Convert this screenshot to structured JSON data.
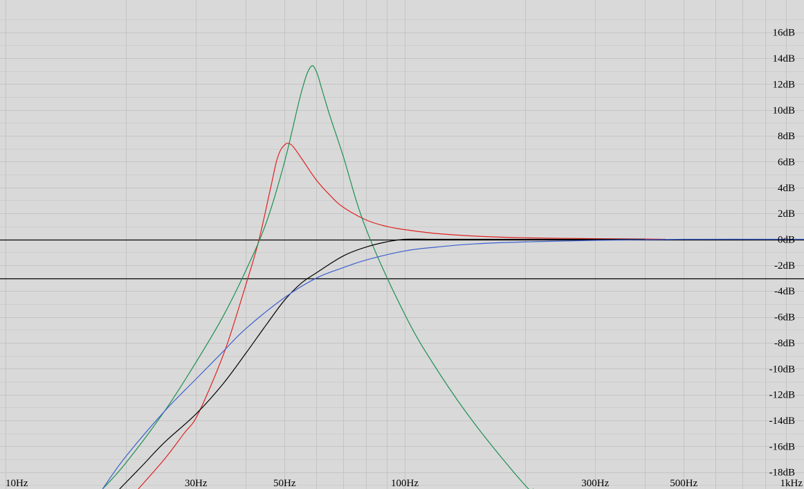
{
  "chart_data": {
    "type": "line",
    "title": "",
    "xlabel": "",
    "ylabel": "",
    "x_scale": "log",
    "xlim": [
      10,
      1000
    ],
    "ylim": [
      -19.3,
      18.5
    ],
    "grid": true,
    "background": "#d9d9d9",
    "x_ticks": [
      {
        "value": 10,
        "label": "10Hz"
      },
      {
        "value": 30,
        "label": "30Hz"
      },
      {
        "value": 50,
        "label": "50Hz"
      },
      {
        "value": 100,
        "label": "100Hz"
      },
      {
        "value": 300,
        "label": "300Hz"
      },
      {
        "value": 500,
        "label": "500Hz"
      },
      {
        "value": 1000,
        "label": "1kHz"
      }
    ],
    "y_ticks": [
      {
        "value": 16,
        "label": "16dB"
      },
      {
        "value": 14,
        "label": "14dB"
      },
      {
        "value": 12,
        "label": "12dB"
      },
      {
        "value": 10,
        "label": "10dB"
      },
      {
        "value": 8,
        "label": "8dB"
      },
      {
        "value": 6,
        "label": "6dB"
      },
      {
        "value": 4,
        "label": "4dB"
      },
      {
        "value": 2,
        "label": "2dB"
      },
      {
        "value": 0,
        "label": "0dB"
      },
      {
        "value": -2,
        "label": "-2dB"
      },
      {
        "value": -4,
        "label": "-4dB"
      },
      {
        "value": -6,
        "label": "-6dB"
      },
      {
        "value": -8,
        "label": "-8dB"
      },
      {
        "value": -10,
        "label": "-10dB"
      },
      {
        "value": -12,
        "label": "-12dB"
      },
      {
        "value": -14,
        "label": "-14dB"
      },
      {
        "value": -16,
        "label": "-16dB"
      },
      {
        "value": -18,
        "label": "-18dB"
      }
    ],
    "reference_lines": [
      0,
      -3
    ],
    "series": [
      {
        "color": "#e02020",
        "x": [
          21.5,
          25,
          28,
          30,
          33,
          36,
          40,
          43,
          46,
          48,
          50,
          52,
          55,
          60,
          65,
          70,
          80,
          90,
          100,
          120,
          150,
          200,
          300,
          400,
          450
        ],
        "y": [
          -19.3,
          -17,
          -15,
          -13.8,
          -11,
          -8,
          -3.5,
          -0.2,
          3.8,
          6.3,
          7.3,
          7.3,
          6.3,
          4.6,
          3.4,
          2.5,
          1.5,
          1.0,
          0.75,
          0.45,
          0.25,
          0.12,
          0.05,
          0.02,
          0.0
        ]
      },
      {
        "color": "#1a9050",
        "x": [
          17.5,
          20,
          25,
          30,
          35,
          40,
          45,
          50,
          55,
          58,
          60,
          62,
          65,
          70,
          80,
          100,
          120,
          150,
          200,
          210
        ],
        "y": [
          -19.3,
          -17.3,
          -13.3,
          -9.5,
          -6,
          -2.4,
          1.3,
          6,
          11.3,
          13.3,
          13.0,
          11.6,
          9.5,
          6.5,
          0.8,
          -5.8,
          -10,
          -14.3,
          -19,
          -19.3
        ]
      },
      {
        "color": "#000000",
        "x": [
          19.3,
          22,
          25,
          30,
          35,
          40,
          45,
          50,
          55,
          60,
          70,
          80,
          90,
          100,
          120,
          150,
          200,
          300,
          400
        ],
        "y": [
          -19.3,
          -17.5,
          -15.7,
          -13.5,
          -11.2,
          -8.8,
          -6.6,
          -4.7,
          -3.4,
          -2.6,
          -1.3,
          -0.6,
          -0.2,
          0.0,
          0.0,
          0.0,
          0.0,
          0.0,
          0.0
        ]
      },
      {
        "color": "#3a5fcd",
        "x": [
          17.5,
          20,
          25,
          30,
          35,
          40,
          50,
          60,
          70,
          80,
          100,
          120,
          150,
          200,
          300,
          500,
          1000
        ],
        "y": [
          -19.3,
          -16.8,
          -13.3,
          -10.8,
          -8.7,
          -6.9,
          -4.5,
          -3.0,
          -2.2,
          -1.6,
          -0.9,
          -0.6,
          -0.35,
          -0.2,
          -0.08,
          0.0,
          0.0
        ]
      }
    ]
  }
}
